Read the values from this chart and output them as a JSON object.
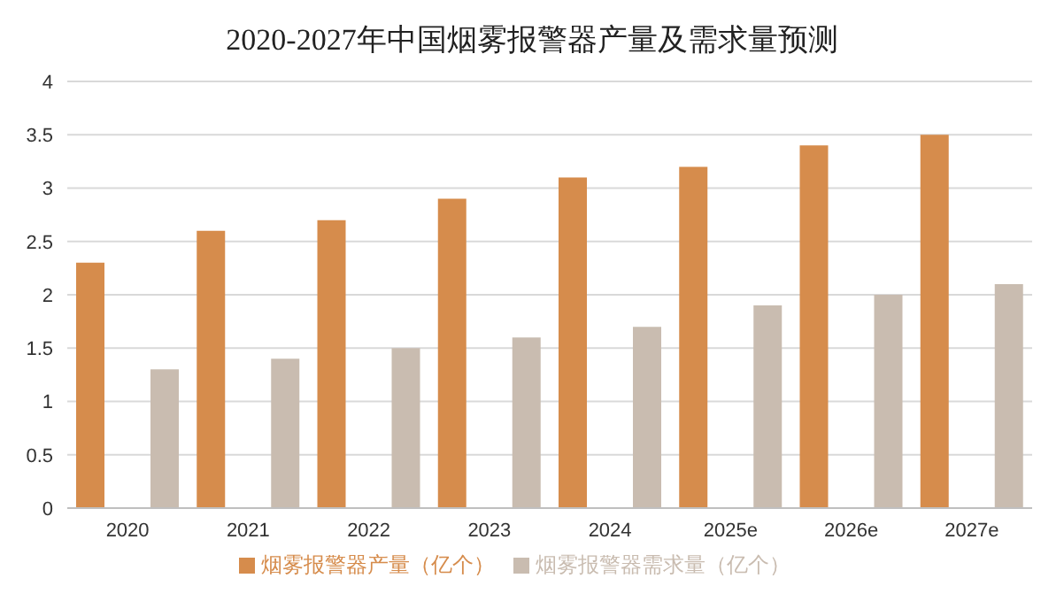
{
  "chart_data": {
    "type": "bar",
    "title": "2020-2027年中国烟雾报警器产量及需求量预测",
    "categories": [
      "2020",
      "2021",
      "2022",
      "2023",
      "2024",
      "2025e",
      "2026e",
      "2027e"
    ],
    "series": [
      {
        "name": "烟雾报警器产量（亿个）",
        "color": "#d68c4c",
        "values": [
          2.3,
          2.6,
          2.7,
          2.9,
          3.1,
          3.2,
          3.4,
          3.5
        ]
      },
      {
        "name": "烟雾报警器需求量（亿个）",
        "color": "#c9bcb0",
        "values": [
          1.3,
          1.4,
          1.5,
          1.6,
          1.7,
          1.9,
          2.0,
          2.1
        ]
      }
    ],
    "ylim": [
      0,
      4
    ],
    "yticks": [
      0,
      0.5,
      1,
      1.5,
      2,
      2.5,
      3,
      3.5,
      4
    ],
    "grid": "y",
    "legend": "bottom"
  }
}
